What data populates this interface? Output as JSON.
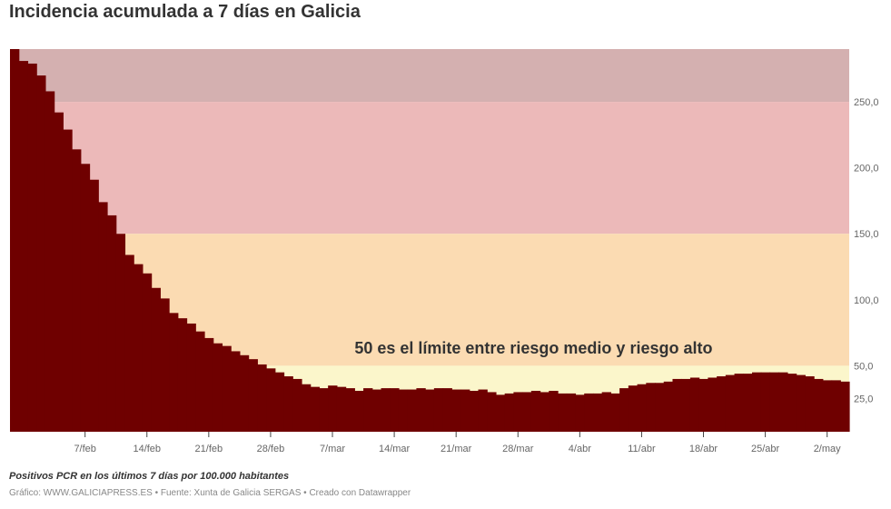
{
  "title": "Incidencia acumulada a 7 días en Galicia",
  "footer": {
    "note": "Positivos PCR en los últimos 7 días por 100.000 habitantes",
    "credit": "Gráfico: WWW.GALICIAPRESS.ES • Fuente: Xunta de Galicia SERGAS • Creado con Datawrapper"
  },
  "colors": {
    "bars": "#6f0000",
    "band_very_high": "#d4b0b0",
    "band_high": "#ecb9b9",
    "band_medium": "#fbdbb2",
    "band_low": "#fbf6cb"
  },
  "chart_data": {
    "type": "area",
    "title": "Incidencia acumulada a 7 días en Galicia",
    "xlabel": "",
    "ylabel": "",
    "ylim": [
      0,
      290
    ],
    "grid": false,
    "y_axis_side": "right",
    "yticks": [
      {
        "value": 25,
        "label": "25,0"
      },
      {
        "value": 50,
        "label": "50,0"
      },
      {
        "value": 100,
        "label": "100,0"
      },
      {
        "value": 150,
        "label": "150,0"
      },
      {
        "value": 200,
        "label": "200,0"
      },
      {
        "value": 250,
        "label": "250,0"
      }
    ],
    "xticks": [
      {
        "index": 8,
        "label": "7/feb"
      },
      {
        "index": 15,
        "label": "14/feb"
      },
      {
        "index": 22,
        "label": "21/feb"
      },
      {
        "index": 29,
        "label": "28/feb"
      },
      {
        "index": 36,
        "label": "7/mar"
      },
      {
        "index": 43,
        "label": "14/mar"
      },
      {
        "index": 50,
        "label": "21/mar"
      },
      {
        "index": 57,
        "label": "28/mar"
      },
      {
        "index": 64,
        "label": "4/abr"
      },
      {
        "index": 71,
        "label": "11/abr"
      },
      {
        "index": 78,
        "label": "18/abr"
      },
      {
        "index": 85,
        "label": "25/abr"
      },
      {
        "index": 92,
        "label": "2/may"
      }
    ],
    "bands": [
      {
        "from": 250,
        "to": 290,
        "color": "#d4b0b0"
      },
      {
        "from": 150,
        "to": 250,
        "color": "#ecb9b9"
      },
      {
        "from": 50,
        "to": 150,
        "color": "#fbdbb2"
      },
      {
        "from": 0,
        "to": 50,
        "color": "#fbf6cb"
      }
    ],
    "annotation": {
      "text": "50 es el límite entre riesgo medio y riesgo alto",
      "x_index": 39,
      "y": 55
    },
    "values": [
      290,
      281,
      279,
      270,
      258,
      242,
      229,
      214,
      203,
      191,
      174,
      164,
      150,
      134,
      127,
      120,
      109,
      101,
      90,
      86,
      82,
      76,
      71,
      67,
      65,
      61,
      58,
      55,
      51,
      48,
      45,
      42,
      40,
      36,
      34,
      33,
      35,
      34,
      33,
      31,
      33,
      32,
      33,
      33,
      32,
      32,
      33,
      32,
      33,
      33,
      32,
      32,
      31,
      32,
      30,
      28,
      29,
      30,
      30,
      31,
      30,
      31,
      29,
      29,
      28,
      29,
      29,
      30,
      29,
      33,
      35,
      36,
      37,
      37,
      38,
      40,
      40,
      41,
      40,
      41,
      42,
      43,
      44,
      44,
      45,
      45,
      45,
      45,
      44,
      43,
      42,
      40,
      39,
      39,
      38
    ]
  }
}
